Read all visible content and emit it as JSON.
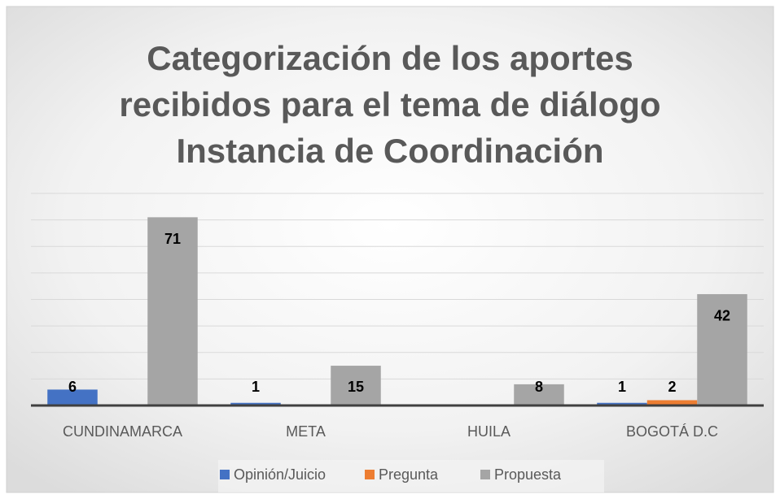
{
  "chart_data": {
    "type": "bar",
    "title": [
      "Categorización de los aportes",
      "recibidos para el tema de diálogo",
      "Instancia de Coordinación"
    ],
    "categories": [
      "CUNDINAMARCA",
      "META",
      "HUILA",
      "BOGOTÁ D.C"
    ],
    "series": [
      {
        "name": "Opinión/Juicio",
        "color": "#4472c4",
        "values": [
          6,
          1,
          null,
          1
        ]
      },
      {
        "name": "Pregunta",
        "color": "#ed7d31",
        "values": [
          null,
          null,
          null,
          2
        ]
      },
      {
        "name": "Propuesta",
        "color": "#a5a5a5",
        "values": [
          71,
          15,
          8,
          42
        ]
      }
    ],
    "ylim": [
      0,
      80
    ],
    "yticks": [
      0,
      10,
      20,
      30,
      40,
      50,
      60,
      70,
      80
    ],
    "grid": true,
    "legend": "bottom"
  }
}
